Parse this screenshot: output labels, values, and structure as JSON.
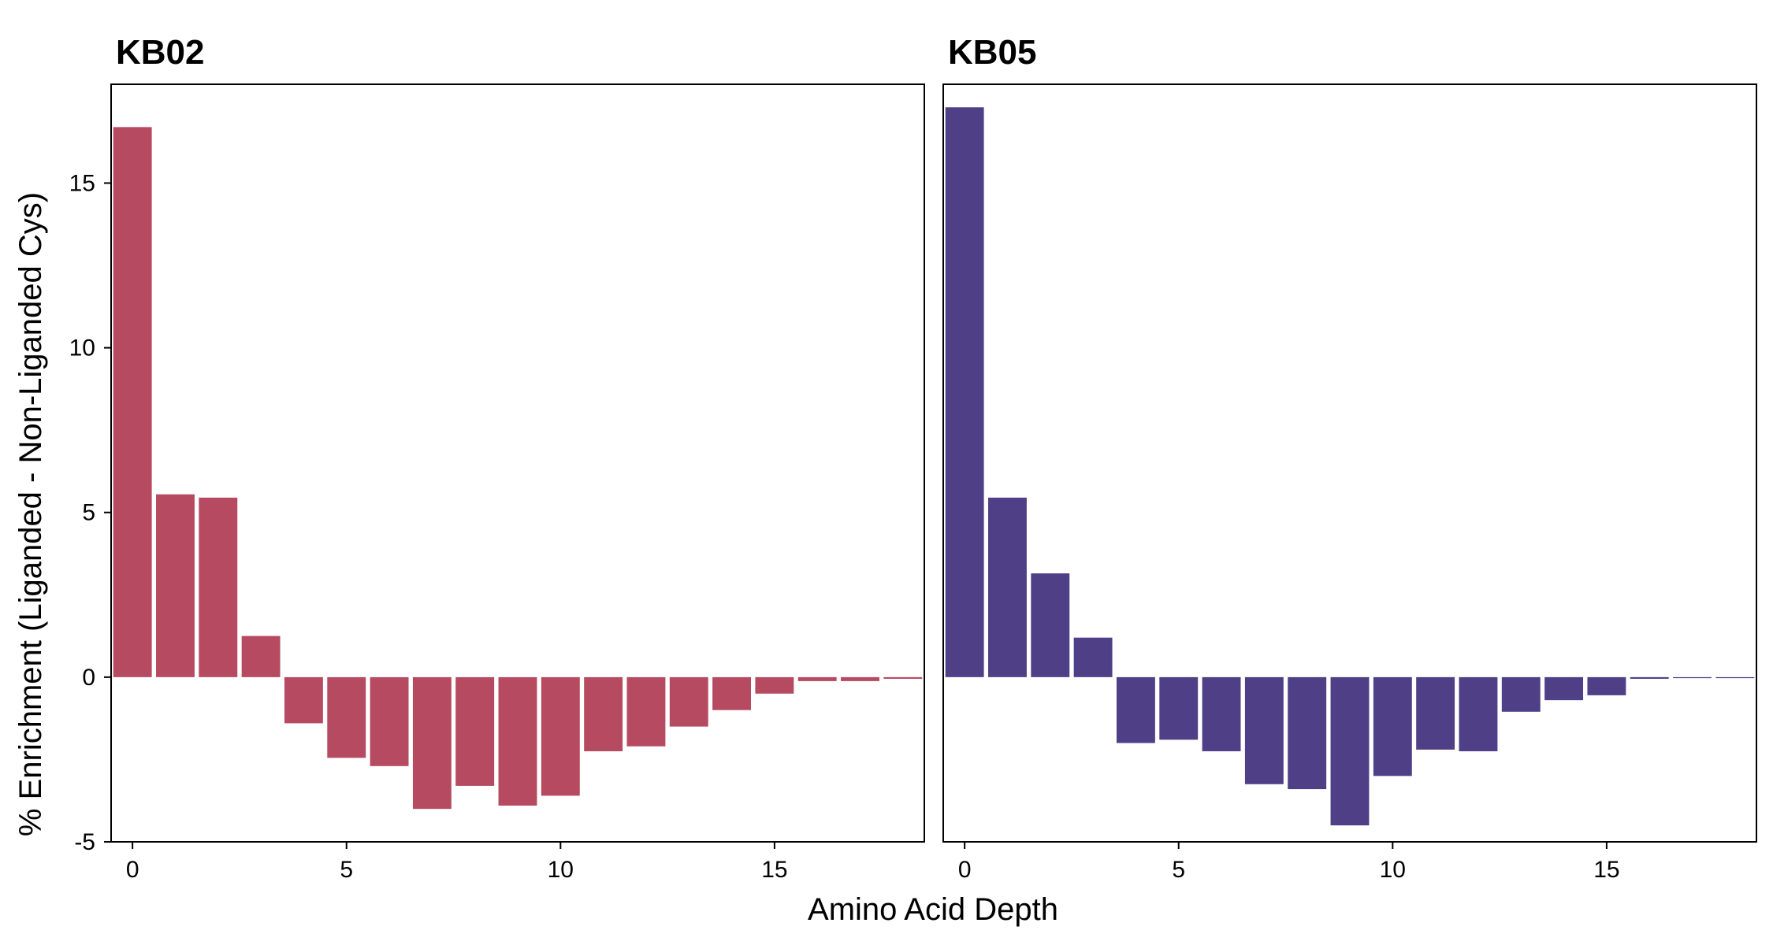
{
  "shared": {
    "xlabel": "Amino Acid Depth",
    "ylabel": "% Enrichment (Liganded - Non-Liganded Cys)"
  },
  "chart_data": [
    {
      "type": "bar",
      "title": "KB02",
      "color": "#B54A60",
      "x": [
        0,
        1,
        2,
        3,
        4,
        5,
        6,
        7,
        8,
        9,
        10,
        11,
        12,
        13,
        14,
        15,
        16,
        17,
        18
      ],
      "values": [
        16.7,
        5.55,
        5.45,
        1.25,
        -1.4,
        -2.45,
        -2.7,
        -4.0,
        -3.3,
        -3.9,
        -3.6,
        -2.25,
        -2.1,
        -1.5,
        -1.0,
        -0.5,
        -0.12,
        -0.12,
        -0.05
      ],
      "xticks": [
        0,
        5,
        10,
        15
      ],
      "yticks": [
        -5,
        0,
        5,
        10,
        15
      ],
      "xlim": [
        -0.5,
        18.5
      ],
      "ylim": [
        -5,
        18
      ]
    },
    {
      "type": "bar",
      "title": "KB05",
      "color": "#4F3F87",
      "x": [
        0,
        1,
        2,
        3,
        4,
        5,
        6,
        7,
        8,
        9,
        10,
        11,
        12,
        13,
        14,
        15,
        16,
        17,
        18
      ],
      "values": [
        17.3,
        5.45,
        3.15,
        1.2,
        -2.0,
        -1.9,
        -2.25,
        -3.25,
        -3.4,
        -4.5,
        -3.0,
        -2.2,
        -2.25,
        -1.05,
        -0.7,
        -0.55,
        -0.05,
        -0.03,
        -0.03
      ],
      "xticks": [
        0,
        5,
        10,
        15
      ],
      "yticks": [
        -5,
        0,
        5,
        10,
        15
      ],
      "xlim": [
        -0.5,
        18.5
      ],
      "ylim": [
        -5,
        18
      ]
    }
  ]
}
